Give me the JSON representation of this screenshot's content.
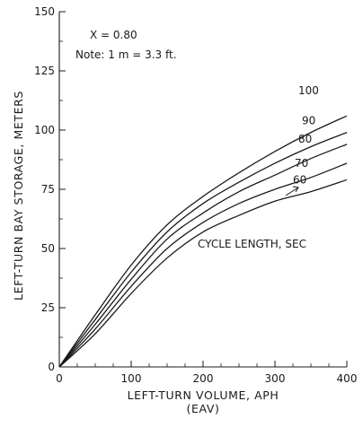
{
  "chart_data": {
    "type": "line",
    "xlabel": "LEFT-TURN VOLUME, APH",
    "xlabel_sub": "(EAV)",
    "ylabel": "LEFT-TURN BAY STORAGE, METERS",
    "xlim": [
      0,
      400
    ],
    "ylim": [
      0,
      150
    ],
    "xticks": [
      0,
      100,
      200,
      300,
      400
    ],
    "yticks": [
      0,
      25,
      50,
      75,
      100,
      125,
      150
    ],
    "grid": false,
    "annotations": [
      "X = 0.80",
      "Note:  1 m = 3.3 ft.",
      "CYCLE LENGTH, SEC"
    ],
    "series": [
      {
        "name": "100",
        "points": [
          [
            0,
            0
          ],
          [
            50,
            22
          ],
          [
            100,
            43
          ],
          [
            150,
            60
          ],
          [
            200,
            72
          ],
          [
            250,
            82
          ],
          [
            300,
            91
          ],
          [
            350,
            99
          ],
          [
            400,
            106
          ]
        ]
      },
      {
        "name": "90",
        "points": [
          [
            0,
            0
          ],
          [
            50,
            20
          ],
          [
            100,
            40
          ],
          [
            150,
            57
          ],
          [
            200,
            69
          ],
          [
            250,
            78
          ],
          [
            300,
            86
          ],
          [
            350,
            93
          ],
          [
            400,
            99
          ]
        ]
      },
      {
        "name": "80",
        "points": [
          [
            0,
            0
          ],
          [
            50,
            18
          ],
          [
            100,
            37
          ],
          [
            150,
            54
          ],
          [
            200,
            65
          ],
          [
            250,
            74
          ],
          [
            300,
            81
          ],
          [
            350,
            88
          ],
          [
            400,
            94
          ]
        ]
      },
      {
        "name": "70",
        "points": [
          [
            0,
            0
          ],
          [
            50,
            16
          ],
          [
            100,
            34
          ],
          [
            150,
            50
          ],
          [
            200,
            61
          ],
          [
            250,
            69
          ],
          [
            300,
            75
          ],
          [
            350,
            80
          ],
          [
            400,
            86
          ]
        ]
      },
      {
        "name": "60",
        "points": [
          [
            0,
            0
          ],
          [
            50,
            14
          ],
          [
            100,
            31
          ],
          [
            150,
            46
          ],
          [
            200,
            57
          ],
          [
            250,
            64
          ],
          [
            300,
            70
          ],
          [
            350,
            74
          ],
          [
            400,
            79
          ]
        ]
      }
    ]
  }
}
